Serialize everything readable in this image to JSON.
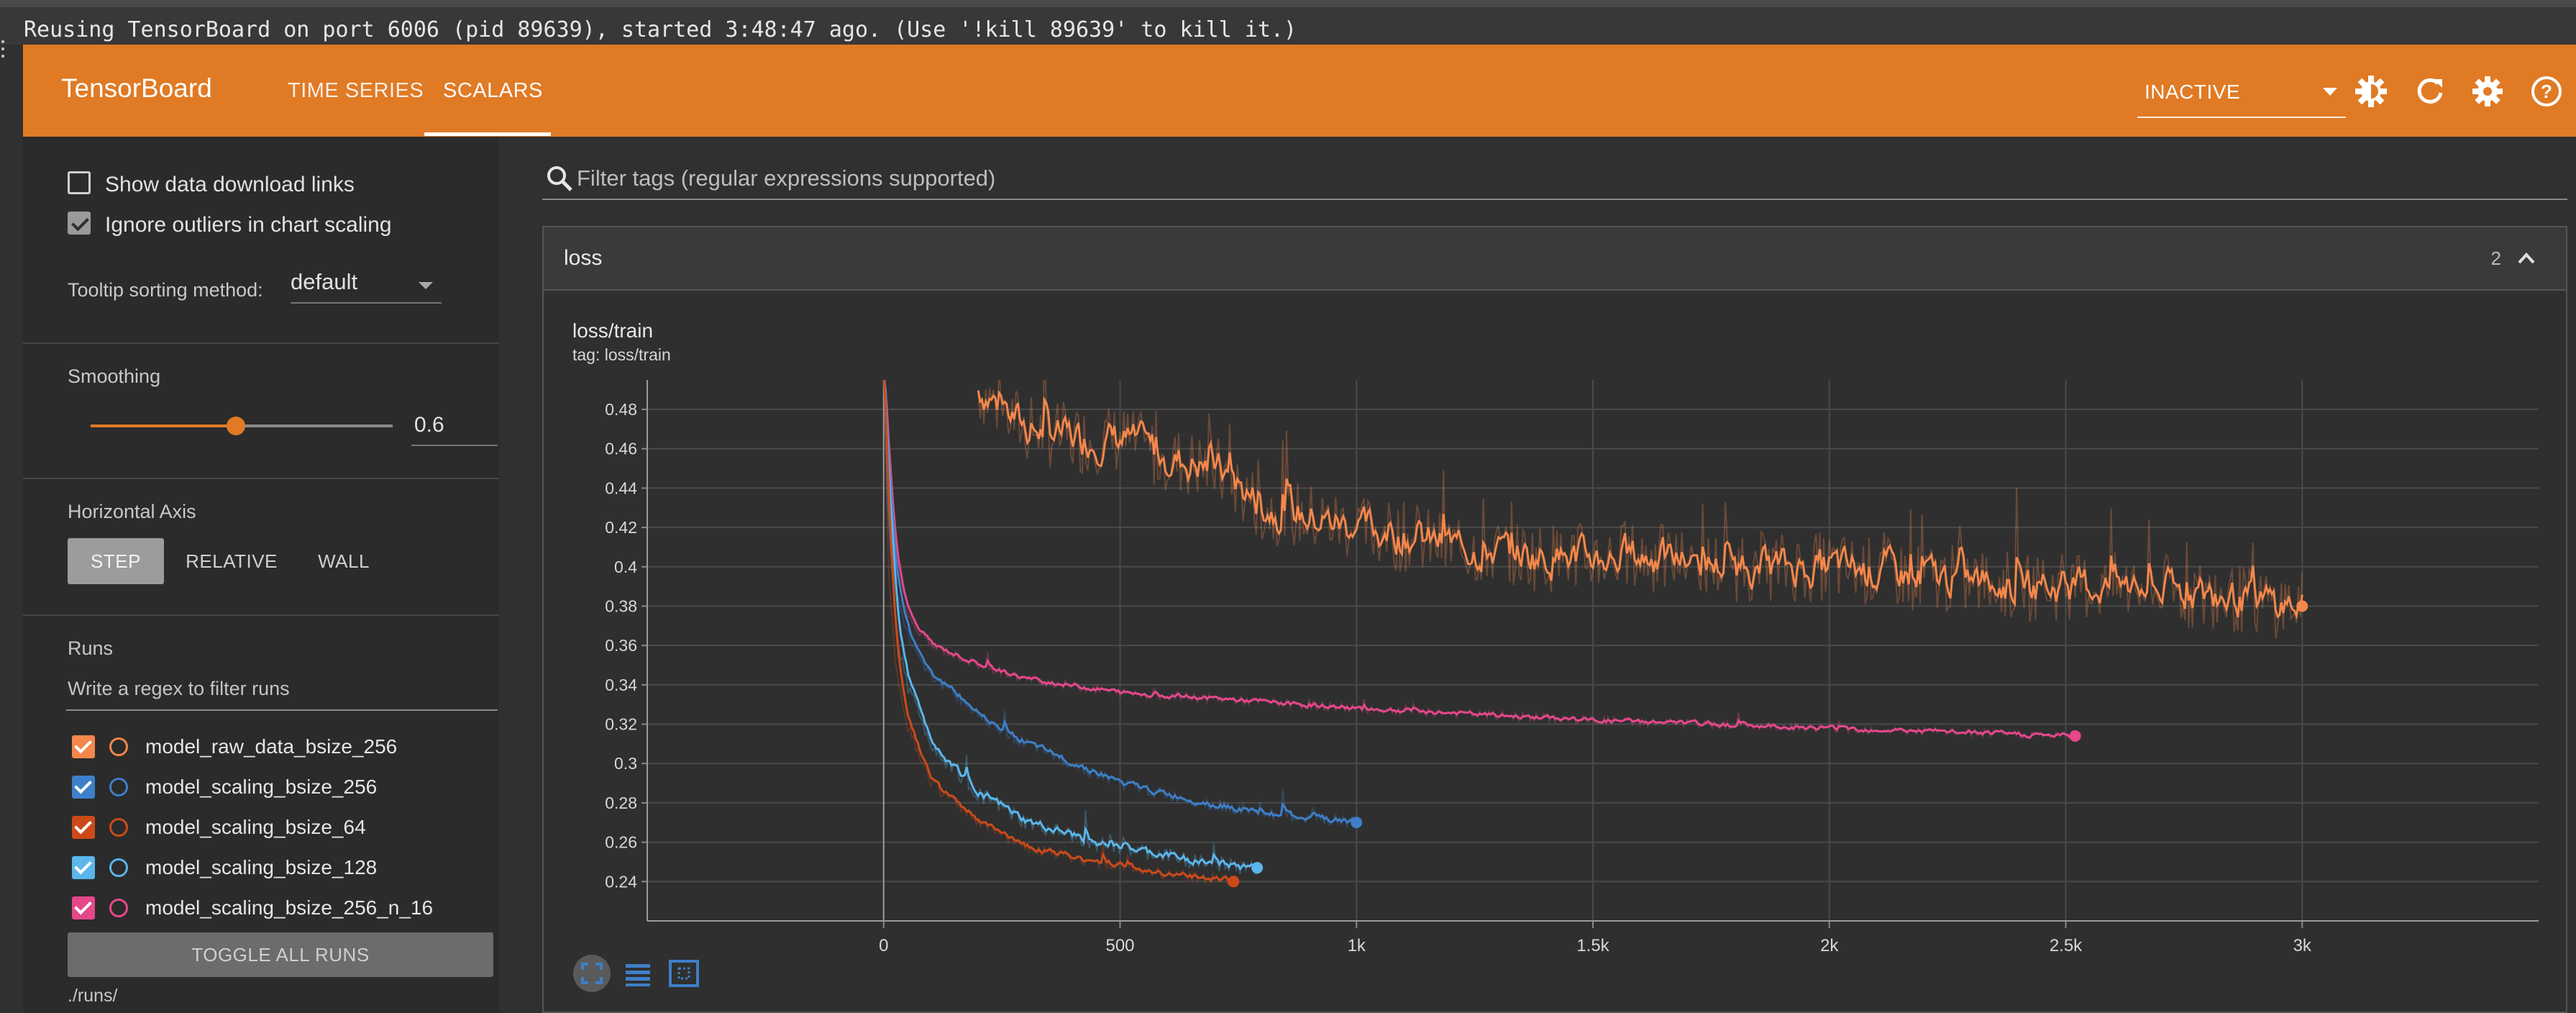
{
  "notice": "Reusing TensorBoard on port 6006 (pid 89639), started 3:48:47 ago. (Use '!kill 89639' to kill it.)",
  "header": {
    "brand": "TensorBoard",
    "tabs": [
      {
        "label": "TIME SERIES"
      },
      {
        "label": "SCALARS"
      }
    ],
    "active_tab": "SCALARS",
    "status_select": "INACTIVE",
    "icons": [
      "theme-icon",
      "refresh-icon",
      "settings-icon",
      "help-icon"
    ]
  },
  "sidebar": {
    "show_download_links": {
      "label": "Show data download links",
      "checked": false
    },
    "ignore_outliers": {
      "label": "Ignore outliers in chart scaling",
      "checked": true
    },
    "tooltip_sorting": {
      "label": "Tooltip sorting method:",
      "value": "default"
    },
    "smoothing": {
      "label": "Smoothing",
      "value": "0.6",
      "fraction": 0.6
    },
    "horizontal_axis": {
      "label": "Horizontal Axis",
      "options": [
        "STEP",
        "RELATIVE",
        "WALL"
      ],
      "selected": "STEP"
    },
    "runs": {
      "label": "Runs",
      "filter_placeholder": "Write a regex to filter runs",
      "items": [
        {
          "name": "model_raw_data_bsize_256",
          "color": "#f4874b",
          "checked": true
        },
        {
          "name": "model_scaling_bsize_256",
          "color": "#3d7fc9",
          "checked": true
        },
        {
          "name": "model_scaling_bsize_64",
          "color": "#cc4a1a",
          "checked": true
        },
        {
          "name": "model_scaling_bsize_128",
          "color": "#5ab6ec",
          "checked": true
        },
        {
          "name": "model_scaling_bsize_256_n_16",
          "color": "#e5488a",
          "checked": true
        }
      ],
      "toggle_all": "TOGGLE ALL RUNS",
      "path": "./runs/"
    }
  },
  "main": {
    "filter_placeholder": "Filter tags (regular expressions supported)",
    "card": {
      "title": "loss",
      "count": "2"
    },
    "chart": {
      "title": "loss/train",
      "tag": "tag: loss/train"
    }
  },
  "chart_data": {
    "type": "line",
    "title": "loss/train",
    "xlabel": "",
    "ylabel": "",
    "x_ticks": [
      "0",
      "500",
      "1k",
      "1.5k",
      "2k",
      "2.5k",
      "3k"
    ],
    "y_ticks": [
      "0.24",
      "0.26",
      "0.28",
      "0.3",
      "0.32",
      "0.34",
      "0.36",
      "0.38",
      "0.4",
      "0.42",
      "0.44",
      "0.46",
      "0.48"
    ],
    "xlim": [
      -500,
      3500
    ],
    "ylim": [
      0.22,
      0.495
    ],
    "grid": true,
    "series": [
      {
        "name": "model_raw_data_bsize_256",
        "color": "#f4874b",
        "x": [
          200,
          300,
          400,
          500,
          600,
          700,
          800,
          900,
          1000,
          1200,
          1400,
          1600,
          1800,
          2000,
          2200,
          2400,
          2600,
          2800,
          3000
        ],
        "y": [
          0.49,
          0.47,
          0.465,
          0.465,
          0.455,
          0.45,
          0.43,
          0.425,
          0.42,
          0.41,
          0.405,
          0.405,
          0.4,
          0.4,
          0.395,
          0.39,
          0.39,
          0.385,
          0.38
        ]
      },
      {
        "name": "model_scaling_bsize_256_n_16",
        "color": "#e5488a",
        "x": [
          0,
          10,
          25,
          50,
          100,
          200,
          300,
          500,
          700,
          1000,
          1500,
          2000,
          2500,
          2520
        ],
        "y": [
          0.5,
          0.44,
          0.4,
          0.375,
          0.36,
          0.35,
          0.343,
          0.336,
          0.333,
          0.328,
          0.322,
          0.318,
          0.314,
          0.314
        ]
      },
      {
        "name": "model_scaling_bsize_256",
        "color": "#3d7fc9",
        "x": [
          0,
          10,
          25,
          50,
          100,
          200,
          300,
          400,
          500,
          600,
          700,
          800,
          900,
          1000
        ],
        "y": [
          0.5,
          0.43,
          0.39,
          0.365,
          0.345,
          0.325,
          0.31,
          0.3,
          0.29,
          0.284,
          0.279,
          0.275,
          0.272,
          0.27
        ]
      },
      {
        "name": "model_scaling_bsize_128",
        "color": "#5ab6ec",
        "x": [
          0,
          10,
          25,
          50,
          100,
          200,
          300,
          400,
          500,
          600,
          700,
          790
        ],
        "y": [
          0.5,
          0.42,
          0.37,
          0.34,
          0.31,
          0.285,
          0.27,
          0.263,
          0.257,
          0.253,
          0.249,
          0.247
        ]
      },
      {
        "name": "model_scaling_bsize_64",
        "color": "#cc4a1a",
        "x": [
          0,
          10,
          25,
          50,
          100,
          200,
          300,
          400,
          500,
          600,
          700,
          740
        ],
        "y": [
          0.5,
          0.4,
          0.35,
          0.32,
          0.29,
          0.27,
          0.258,
          0.252,
          0.248,
          0.244,
          0.241,
          0.24
        ]
      }
    ]
  }
}
